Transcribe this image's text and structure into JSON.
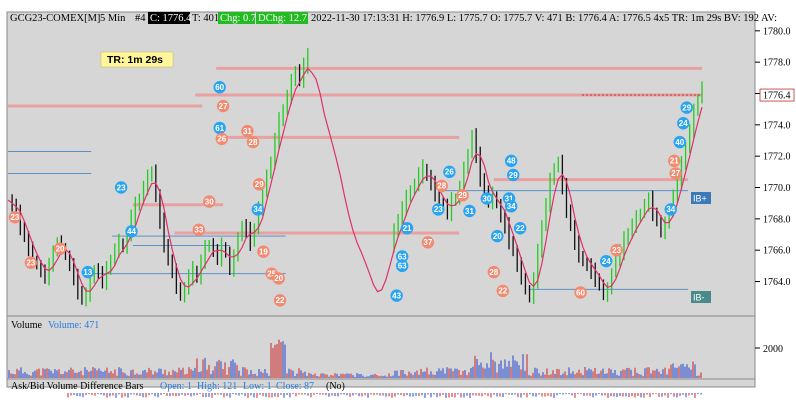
{
  "header": {
    "symbol": "GCG23-COMEX[M]",
    "interval": "5 Min",
    "bar_no": "#4",
    "close_box": "C: 1776.4",
    "t_value": "T: 401",
    "chg_box": "Chg: 0.7",
    "dchg_box": "DChg: 12.7",
    "rest": "2022-11-30 17:13:31 H: 1776.9 L: 1775.7 O: 1775.7 V: 471 B: 1776.4 A: 1776.5 4x5 TR: 1m 29s BV: 192 AV:"
  },
  "timer": "TR: 1m 29s",
  "price_axis": {
    "ticks": [
      "1780.0",
      "1778.0",
      "1776.0",
      "1774.0",
      "1772.0",
      "1770.0",
      "1768.0",
      "1766.0",
      "1764.0"
    ],
    "current_price": "1776.4",
    "volume_tick": "2000"
  },
  "right_tags": {
    "upper": "IB+",
    "lower": "IB-"
  },
  "volume_pane": {
    "label": "Volume",
    "value_label": "Volume: 471"
  },
  "askbid_pane": {
    "title": "Ask/Bid Volume Difference Bars",
    "open": "Open: 1",
    "high": "High: 121",
    "low": "Low: 1",
    "close": "Close: 87",
    "tail": "(No)"
  },
  "colors": {
    "up_bar": "#22cc22",
    "down_bar": "#111111",
    "moving_average": "#e0306a",
    "level_line": "#e8a0a0",
    "blue_badge": "#2aa4f0",
    "salmon_badge": "#f08a70",
    "volume_up": "#2244cc",
    "volume_down": "#cc2222",
    "chg_box": "#22bb22",
    "close_box": "#000000"
  },
  "chart_data": {
    "type": "candlestick",
    "ylim": [
      1761.8,
      1781.2
    ],
    "y_ticks": [
      1764,
      1766,
      1768,
      1770,
      1772,
      1774,
      1776,
      1778,
      1780
    ],
    "close_path": [
      1769.2,
      1768.8,
      1768.3,
      1767.5,
      1766.8,
      1766.0,
      1765.4,
      1765.0,
      1764.6,
      1764.3,
      1764.9,
      1766.0,
      1766.4,
      1766.2,
      1765.6,
      1765.0,
      1764.2,
      1763.4,
      1762.8,
      1763.2,
      1764.1,
      1764.8,
      1764.5,
      1764.0,
      1764.7,
      1765.4,
      1766.0,
      1766.5,
      1766.1,
      1767.0,
      1768.1,
      1768.8,
      1769.3,
      1770.0,
      1770.6,
      1771.1,
      1769.4,
      1767.8,
      1766.4,
      1765.3,
      1764.6,
      1763.7,
      1763.0,
      1763.6,
      1764.3,
      1764.7,
      1764.2,
      1765.3,
      1766.1,
      1766.4,
      1765.9,
      1765.5,
      1766.2,
      1765.8,
      1764.8,
      1765.5,
      1766.9,
      1767.5,
      1767.2,
      1766.5,
      1767.4,
      1768.7,
      1769.6,
      1770.9,
      1771.6,
      1773.0,
      1774.2,
      1775.0,
      1775.8,
      1776.7,
      1777.5,
      1776.8,
      1777.8,
      1778.3,
      1776.4,
      1775.2,
      1774.1,
      1773.2,
      1772.5,
      1771.3,
      1770.1,
      1768.8,
      1767.4,
      1766.7,
      1766.2,
      1765.6,
      1765.0,
      1764.1,
      1763.4,
      1762.7,
      1763.2,
      1764.6,
      1765.9,
      1766.4,
      1767.1,
      1768.0,
      1768.7,
      1769.3,
      1769.9,
      1770.2,
      1770.8,
      1771.2,
      1770.7,
      1770.2,
      1769.6,
      1769.0,
      1768.8,
      1768.4,
      1769.1,
      1769.3,
      1770.0,
      1771.1,
      1772.2,
      1773.3,
      1772.0,
      1770.6,
      1769.7,
      1769.1,
      1769.5,
      1768.9,
      1768.1,
      1767.5,
      1766.6,
      1765.9,
      1765.0,
      1764.3,
      1763.4,
      1763.0,
      1764.1,
      1765.8,
      1767.6,
      1768.9,
      1770.4,
      1771.3,
      1771.6,
      1770.0,
      1768.6,
      1767.5,
      1766.4,
      1765.7,
      1765.2,
      1765.0,
      1764.6,
      1764.2,
      1763.7,
      1763.2,
      1763.4,
      1764.6,
      1765.4,
      1765.9,
      1766.6,
      1767.1,
      1767.6,
      1768.0,
      1768.4,
      1768.9,
      1769.2,
      1768.4,
      1767.8,
      1767.2,
      1767.6,
      1768.5,
      1769.5,
      1770.4,
      1771.4,
      1772.6,
      1773.6,
      1774.8,
      1775.7,
      1776.4
    ],
    "level_lines": [
      {
        "y": 1777.6,
        "x_from": 0.3,
        "x_to": 1.0
      },
      {
        "y": 1775.9,
        "x_from": 0.27,
        "x_to": 1.0
      },
      {
        "y": 1775.2,
        "x_from": 0.0,
        "x_to": 0.28
      },
      {
        "y": 1773.2,
        "x_from": 0.3,
        "x_to": 0.65
      },
      {
        "y": 1770.5,
        "x_from": 0.7,
        "x_to": 0.98
      },
      {
        "y": 1768.9,
        "x_from": 0.18,
        "x_to": 0.31
      },
      {
        "y": 1767.1,
        "x_from": 0.24,
        "x_to": 0.65
      }
    ],
    "reference_lines": [
      {
        "y": 1772.3,
        "x_from": 0.0,
        "x_to": 0.12
      },
      {
        "y": 1770.9,
        "x_from": 0.0,
        "x_to": 0.12
      },
      {
        "y": 1769.8,
        "x_from": 0.62,
        "x_to": 0.98
      },
      {
        "y": 1766.9,
        "x_from": 0.15,
        "x_to": 0.4
      },
      {
        "y": 1766.3,
        "x_from": 0.18,
        "x_to": 0.32
      },
      {
        "y": 1764.5,
        "x_from": 0.12,
        "x_to": 0.4
      },
      {
        "y": 1763.5,
        "x_from": 0.75,
        "x_to": 0.98
      }
    ],
    "badges": [
      {
        "t": 0.01,
        "y": 1768.1,
        "label": "23",
        "kind": "salmon"
      },
      {
        "t": 0.033,
        "y": 1765.2,
        "label": "23",
        "kind": "salmon"
      },
      {
        "t": 0.075,
        "y": 1766.1,
        "label": "20",
        "kind": "salmon"
      },
      {
        "t": 0.115,
        "y": 1764.6,
        "label": "13",
        "kind": "blue"
      },
      {
        "t": 0.163,
        "y": 1770.0,
        "label": "23",
        "kind": "blue"
      },
      {
        "t": 0.178,
        "y": 1767.2,
        "label": "44",
        "kind": "blue"
      },
      {
        "t": 0.275,
        "y": 1767.3,
        "label": "33",
        "kind": "salmon"
      },
      {
        "t": 0.29,
        "y": 1769.1,
        "label": "30",
        "kind": "salmon"
      },
      {
        "t": 0.305,
        "y": 1776.4,
        "label": "60",
        "kind": "blue"
      },
      {
        "t": 0.31,
        "y": 1775.2,
        "label": "27",
        "kind": "salmon"
      },
      {
        "t": 0.305,
        "y": 1773.8,
        "label": "61",
        "kind": "blue"
      },
      {
        "t": 0.308,
        "y": 1773.1,
        "label": "26",
        "kind": "salmon"
      },
      {
        "t": 0.345,
        "y": 1773.6,
        "label": "31",
        "kind": "salmon"
      },
      {
        "t": 0.353,
        "y": 1772.9,
        "label": "28",
        "kind": "salmon"
      },
      {
        "t": 0.362,
        "y": 1770.2,
        "label": "29",
        "kind": "salmon"
      },
      {
        "t": 0.36,
        "y": 1768.6,
        "label": "34",
        "kind": "blue"
      },
      {
        "t": 0.368,
        "y": 1765.9,
        "label": "19",
        "kind": "salmon"
      },
      {
        "t": 0.38,
        "y": 1764.5,
        "label": "25",
        "kind": "salmon"
      },
      {
        "t": 0.39,
        "y": 1764.2,
        "label": "20",
        "kind": "salmon"
      },
      {
        "t": 0.392,
        "y": 1762.8,
        "label": "22",
        "kind": "salmon"
      },
      {
        "t": 0.56,
        "y": 1763.1,
        "label": "43",
        "kind": "blue"
      },
      {
        "t": 0.568,
        "y": 1765.0,
        "label": "63",
        "kind": "blue"
      },
      {
        "t": 0.568,
        "y": 1765.6,
        "label": "63",
        "kind": "blue"
      },
      {
        "t": 0.575,
        "y": 1767.4,
        "label": "21",
        "kind": "blue"
      },
      {
        "t": 0.605,
        "y": 1766.5,
        "label": "37",
        "kind": "salmon"
      },
      {
        "t": 0.62,
        "y": 1768.6,
        "label": "23",
        "kind": "blue"
      },
      {
        "t": 0.625,
        "y": 1770.1,
        "label": "28",
        "kind": "salmon"
      },
      {
        "t": 0.636,
        "y": 1771.0,
        "label": "26",
        "kind": "blue"
      },
      {
        "t": 0.655,
        "y": 1769.5,
        "label": "29",
        "kind": "salmon"
      },
      {
        "t": 0.665,
        "y": 1768.5,
        "label": "31",
        "kind": "blue"
      },
      {
        "t": 0.69,
        "y": 1769.3,
        "label": "30",
        "kind": "blue"
      },
      {
        "t": 0.705,
        "y": 1766.9,
        "label": "20",
        "kind": "blue"
      },
      {
        "t": 0.7,
        "y": 1764.6,
        "label": "28",
        "kind": "salmon"
      },
      {
        "t": 0.713,
        "y": 1763.4,
        "label": "22",
        "kind": "salmon"
      },
      {
        "t": 0.725,
        "y": 1771.7,
        "label": "48",
        "kind": "blue"
      },
      {
        "t": 0.728,
        "y": 1770.8,
        "label": "29",
        "kind": "blue"
      },
      {
        "t": 0.722,
        "y": 1769.3,
        "label": "31",
        "kind": "blue"
      },
      {
        "t": 0.725,
        "y": 1768.8,
        "label": "34",
        "kind": "blue"
      },
      {
        "t": 0.738,
        "y": 1767.4,
        "label": "22",
        "kind": "blue"
      },
      {
        "t": 0.825,
        "y": 1763.3,
        "label": "60",
        "kind": "salmon"
      },
      {
        "t": 0.862,
        "y": 1765.3,
        "label": "24",
        "kind": "blue"
      },
      {
        "t": 0.877,
        "y": 1766.0,
        "label": "23",
        "kind": "salmon"
      },
      {
        "t": 0.955,
        "y": 1768.6,
        "label": "34",
        "kind": "blue"
      },
      {
        "t": 0.96,
        "y": 1771.7,
        "label": "21",
        "kind": "salmon"
      },
      {
        "t": 0.962,
        "y": 1770.9,
        "label": "27",
        "kind": "salmon"
      },
      {
        "t": 0.968,
        "y": 1772.9,
        "label": "40",
        "kind": "blue"
      },
      {
        "t": 0.973,
        "y": 1774.1,
        "label": "24",
        "kind": "blue"
      },
      {
        "t": 0.978,
        "y": 1775.1,
        "label": "29",
        "kind": "blue"
      }
    ]
  }
}
